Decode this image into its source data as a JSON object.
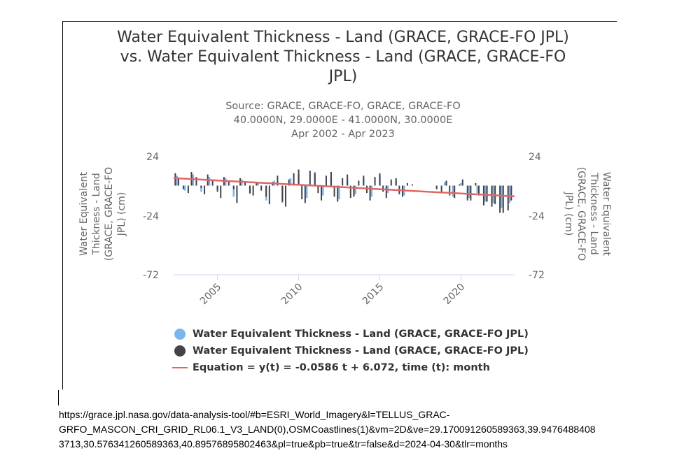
{
  "chart_data": {
    "type": "bar",
    "title": "Water Equivalent Thickness - Land (GRACE, GRACE-FO JPL) vs. Water Equivalent Thickness - Land (GRACE, GRACE-FO JPL)",
    "title_lines": [
      "Water Equivalent Thickness - Land (GRACE, GRACE-FO JPL)",
      "vs. Water Equivalent Thickness - Land (GRACE, GRACE-FO",
      "JPL)"
    ],
    "subtitle_lines": [
      "Source: GRACE, GRACE-FO, GRACE, GRACE-FO",
      "40.0000N, 29.0000E - 41.0000N, 30.0000E",
      "Apr 2002 - Apr 2023"
    ],
    "ylabel_left_lines": [
      "Water Equivalent",
      "Thickness - Land",
      "(GRACE, GRACE-FO",
      "JPL) (cm)"
    ],
    "ylabel_right_lines": [
      "Water Equivalent",
      "Thickness - Land",
      "(GRACE, GRACE-FO",
      "JPL) (cm)"
    ],
    "ylim": [
      -72,
      24
    ],
    "yticks": [
      "24",
      "-24",
      "-72"
    ],
    "xlim": [
      2002.3,
      2023.3
    ],
    "xticks": [
      "2005",
      "2010",
      "2015",
      "2020"
    ],
    "grid": false,
    "legend_position": "bottom",
    "series": [
      {
        "name": "Water Equivalent Thickness - Land (GRACE, GRACE-FO JPL)",
        "type": "bar",
        "color": "#7cb5ec",
        "x": [
          2002.5,
          2003.0,
          2003.5,
          2004.0,
          2004.5,
          2005.0,
          2005.5,
          2006.0,
          2006.5,
          2007.0,
          2007.5,
          2008.0,
          2008.5,
          2009.0,
          2009.5,
          2010.0,
          2010.5,
          2011.0,
          2011.5,
          2012.0,
          2012.5,
          2013.0,
          2013.5,
          2014.0,
          2014.5,
          2015.0,
          2015.5,
          2016.0,
          2016.5,
          2019.0,
          2019.5,
          2020.0,
          2020.5,
          2021.0,
          2021.5,
          2022.0,
          2022.5,
          2023.0
        ],
        "values": [
          8,
          -4,
          9,
          -5,
          7,
          -3,
          6,
          -9,
          5,
          -7,
          3,
          -12,
          4,
          -14,
          6,
          9,
          -10,
          11,
          -8,
          7,
          -11,
          5,
          -7,
          6,
          -9,
          8,
          -6,
          4,
          -8,
          3,
          -9,
          2,
          -10,
          -6,
          -13,
          -14,
          -18,
          -14
        ]
      },
      {
        "name": "Water Equivalent Thickness - Land (GRACE, GRACE-FO JPL)",
        "type": "bar",
        "color": "#434348",
        "x": [
          2002.4,
          2002.6,
          2002.9,
          2003.2,
          2003.4,
          2003.7,
          2004.0,
          2004.2,
          2004.4,
          2004.7,
          2005.0,
          2005.2,
          2005.4,
          2005.7,
          2006.0,
          2006.2,
          2006.4,
          2006.7,
          2007.0,
          2007.2,
          2007.4,
          2007.7,
          2008.0,
          2008.2,
          2008.4,
          2008.7,
          2009.0,
          2009.2,
          2009.4,
          2009.7,
          2010.0,
          2010.2,
          2010.4,
          2010.7,
          2011.0,
          2011.2,
          2011.4,
          2011.7,
          2012.0,
          2012.2,
          2012.4,
          2012.7,
          2013.0,
          2013.2,
          2013.4,
          2013.7,
          2014.0,
          2014.2,
          2014.4,
          2014.7,
          2015.0,
          2015.2,
          2015.4,
          2015.7,
          2016.0,
          2016.2,
          2016.4,
          2016.7,
          2017.0,
          2018.5,
          2018.8,
          2019.1,
          2019.3,
          2019.6,
          2019.9,
          2020.1,
          2020.4,
          2020.6,
          2020.9,
          2021.1,
          2021.4,
          2021.6,
          2021.9,
          2022.1,
          2022.4,
          2022.6,
          2022.9,
          2023.1
        ],
        "values": [
          10,
          6,
          -3,
          -6,
          11,
          7,
          -2,
          -7,
          9,
          5,
          -5,
          -10,
          7,
          4,
          -3,
          -14,
          6,
          3,
          -6,
          -8,
          2,
          -4,
          -9,
          -15,
          3,
          8,
          -13,
          -17,
          5,
          10,
          13,
          -11,
          -14,
          12,
          10,
          -6,
          -12,
          8,
          11,
          -9,
          -13,
          6,
          9,
          -10,
          -9,
          4,
          8,
          -6,
          -12,
          7,
          10,
          -5,
          -10,
          5,
          6,
          -7,
          -9,
          2,
          1,
          -3,
          -5,
          4,
          -8,
          -10,
          1,
          5,
          -12,
          -12,
          2,
          -8,
          -16,
          -13,
          -17,
          -15,
          -22,
          -22,
          -20,
          -12
        ]
      },
      {
        "name": "Equation = y(t) = -0.0586 t + 6.072, time (t): month",
        "type": "line",
        "color": "#e06666",
        "x": [
          2002.3,
          2023.3
        ],
        "values": [
          6.07,
          -8.7
        ]
      }
    ]
  },
  "url_lines": [
    "https://grace.jpl.nasa.gov/data-analysis-tool/#b=ESRI_World_Imagery&l=TELLUS_GRAC-",
    "GRFO_MASCON_CRI_GRID_RL06.1_V3_LAND(0),OSMCoastlines(1)&vm=2D&ve=29.170091260589363,39.9476488408",
    "3713,30.576341260589363,40.89576895802463&pl=true&pb=true&tr=false&d=2024-04-30&tlr=months"
  ]
}
